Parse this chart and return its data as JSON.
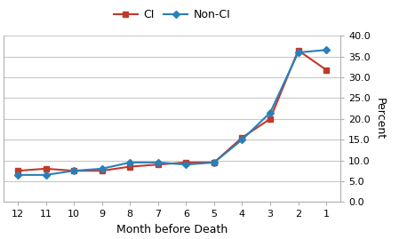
{
  "months": [
    12,
    11,
    10,
    9,
    8,
    7,
    6,
    5,
    4,
    3,
    2,
    1
  ],
  "ci": [
    7.5,
    8.0,
    7.5,
    7.5,
    8.5,
    9.0,
    9.5,
    9.5,
    15.5,
    20.0,
    36.5,
    31.8
  ],
  "non_ci": [
    6.5,
    6.5,
    7.5,
    8.0,
    9.5,
    9.5,
    9.0,
    9.5,
    15.0,
    21.5,
    36.0,
    36.6
  ],
  "ci_color": "#c0392b",
  "non_ci_color": "#2980b9",
  "ci_label": "CI",
  "non_ci_label": "Non-CI",
  "xlabel": "Month before Death",
  "ylabel": "Percent",
  "ylim": [
    0,
    40
  ],
  "yticks": [
    0.0,
    5.0,
    10.0,
    15.0,
    20.0,
    25.0,
    30.0,
    35.0,
    40.0
  ],
  "background_color": "#ffffff",
  "grid_color": "#c8c8c8",
  "axis_fontsize": 9,
  "tick_fontsize": 8,
  "legend_fontsize": 9
}
